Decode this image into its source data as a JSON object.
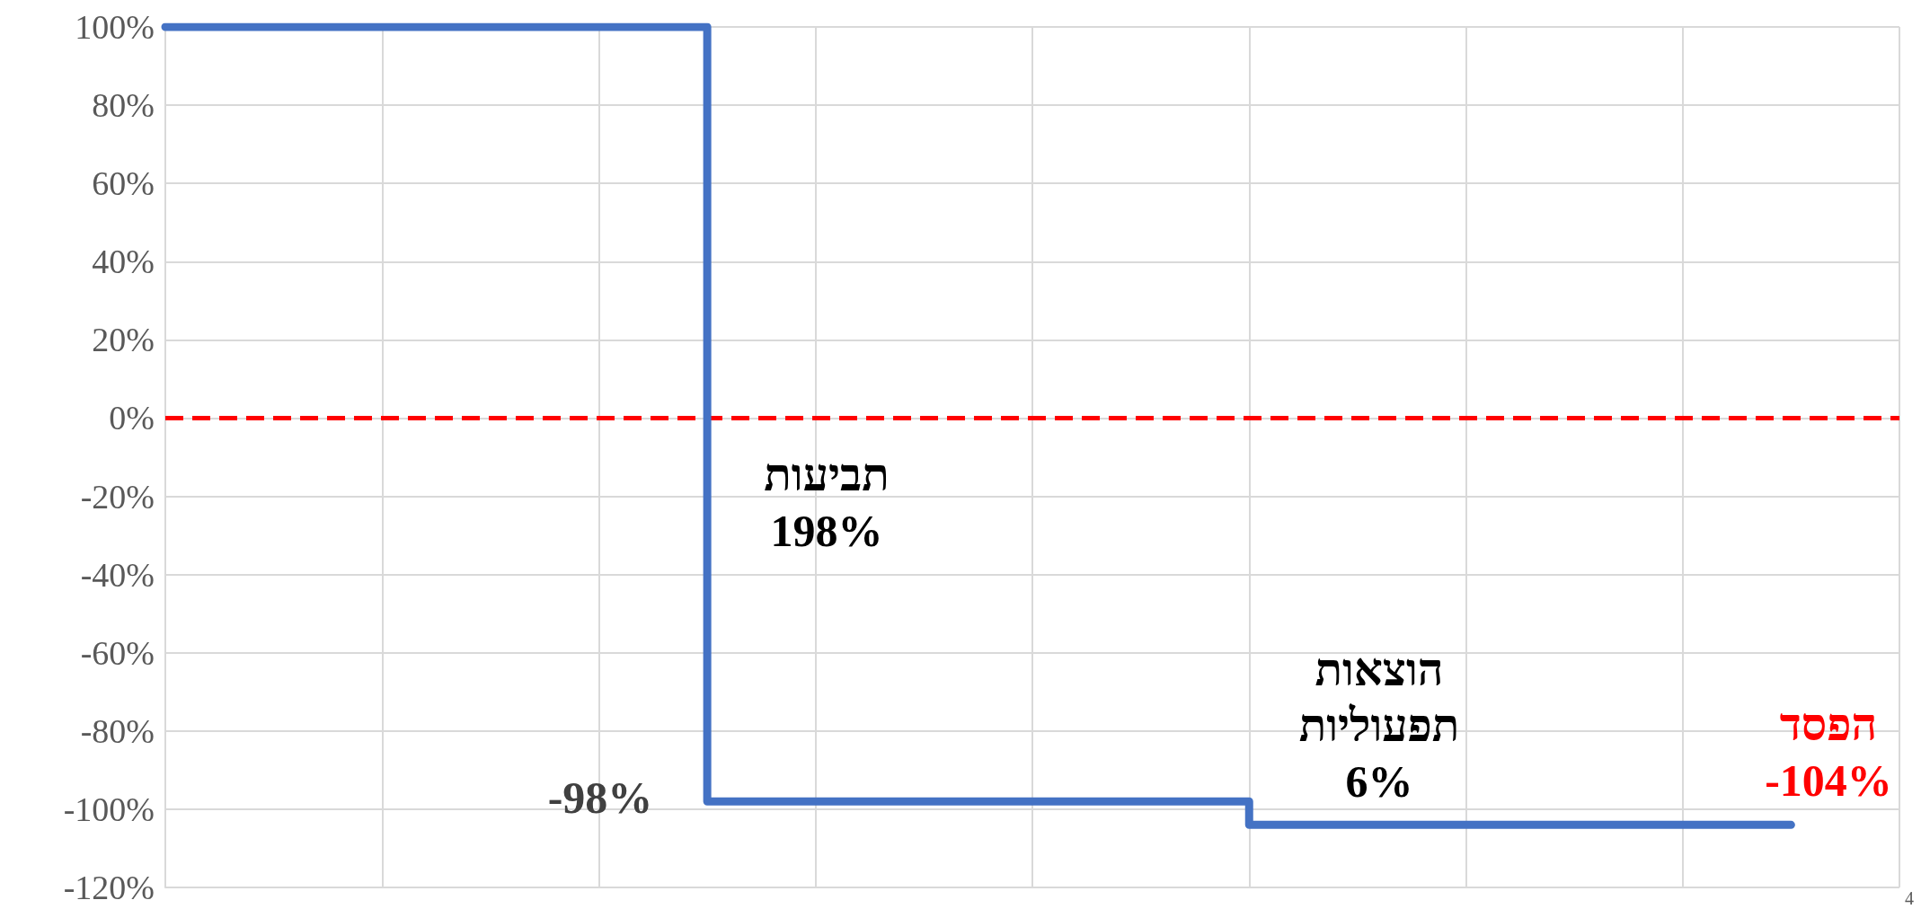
{
  "chart_data": {
    "type": "step",
    "categories": [
      null,
      null,
      null,
      null
    ],
    "series": [
      {
        "color": "#4472c4",
        "values": [
          100,
          -98,
          -104,
          -104
        ]
      }
    ],
    "ylim": [
      -120,
      100
    ],
    "yticks": [
      {
        "value": -120,
        "label": "-120%"
      },
      {
        "value": -100,
        "label": "-100%"
      },
      {
        "value": -80,
        "label": "-80%"
      },
      {
        "value": -60,
        "label": "-60%"
      },
      {
        "value": -40,
        "label": "-40%"
      },
      {
        "value": -20,
        "label": "-20%"
      },
      {
        "value": 0,
        "label": "0%"
      },
      {
        "value": 20,
        "label": "20%"
      },
      {
        "value": 40,
        "label": "40%"
      },
      {
        "value": 60,
        "label": "60%"
      },
      {
        "value": 80,
        "label": "80%"
      },
      {
        "value": 100,
        "label": "100%"
      }
    ],
    "grid": true,
    "line_style": "solid",
    "tick_labels": "y",
    "ref_lines": [
      {
        "axis": "y",
        "value": 0,
        "color": "#ff0000",
        "line_style": "dashed"
      }
    ],
    "annotations": [
      "תביעות\n198%",
      "-98%",
      "הוצאות\nתפעוליות\n6%",
      "הפסד\n-104%",
      "4"
    ]
  }
}
